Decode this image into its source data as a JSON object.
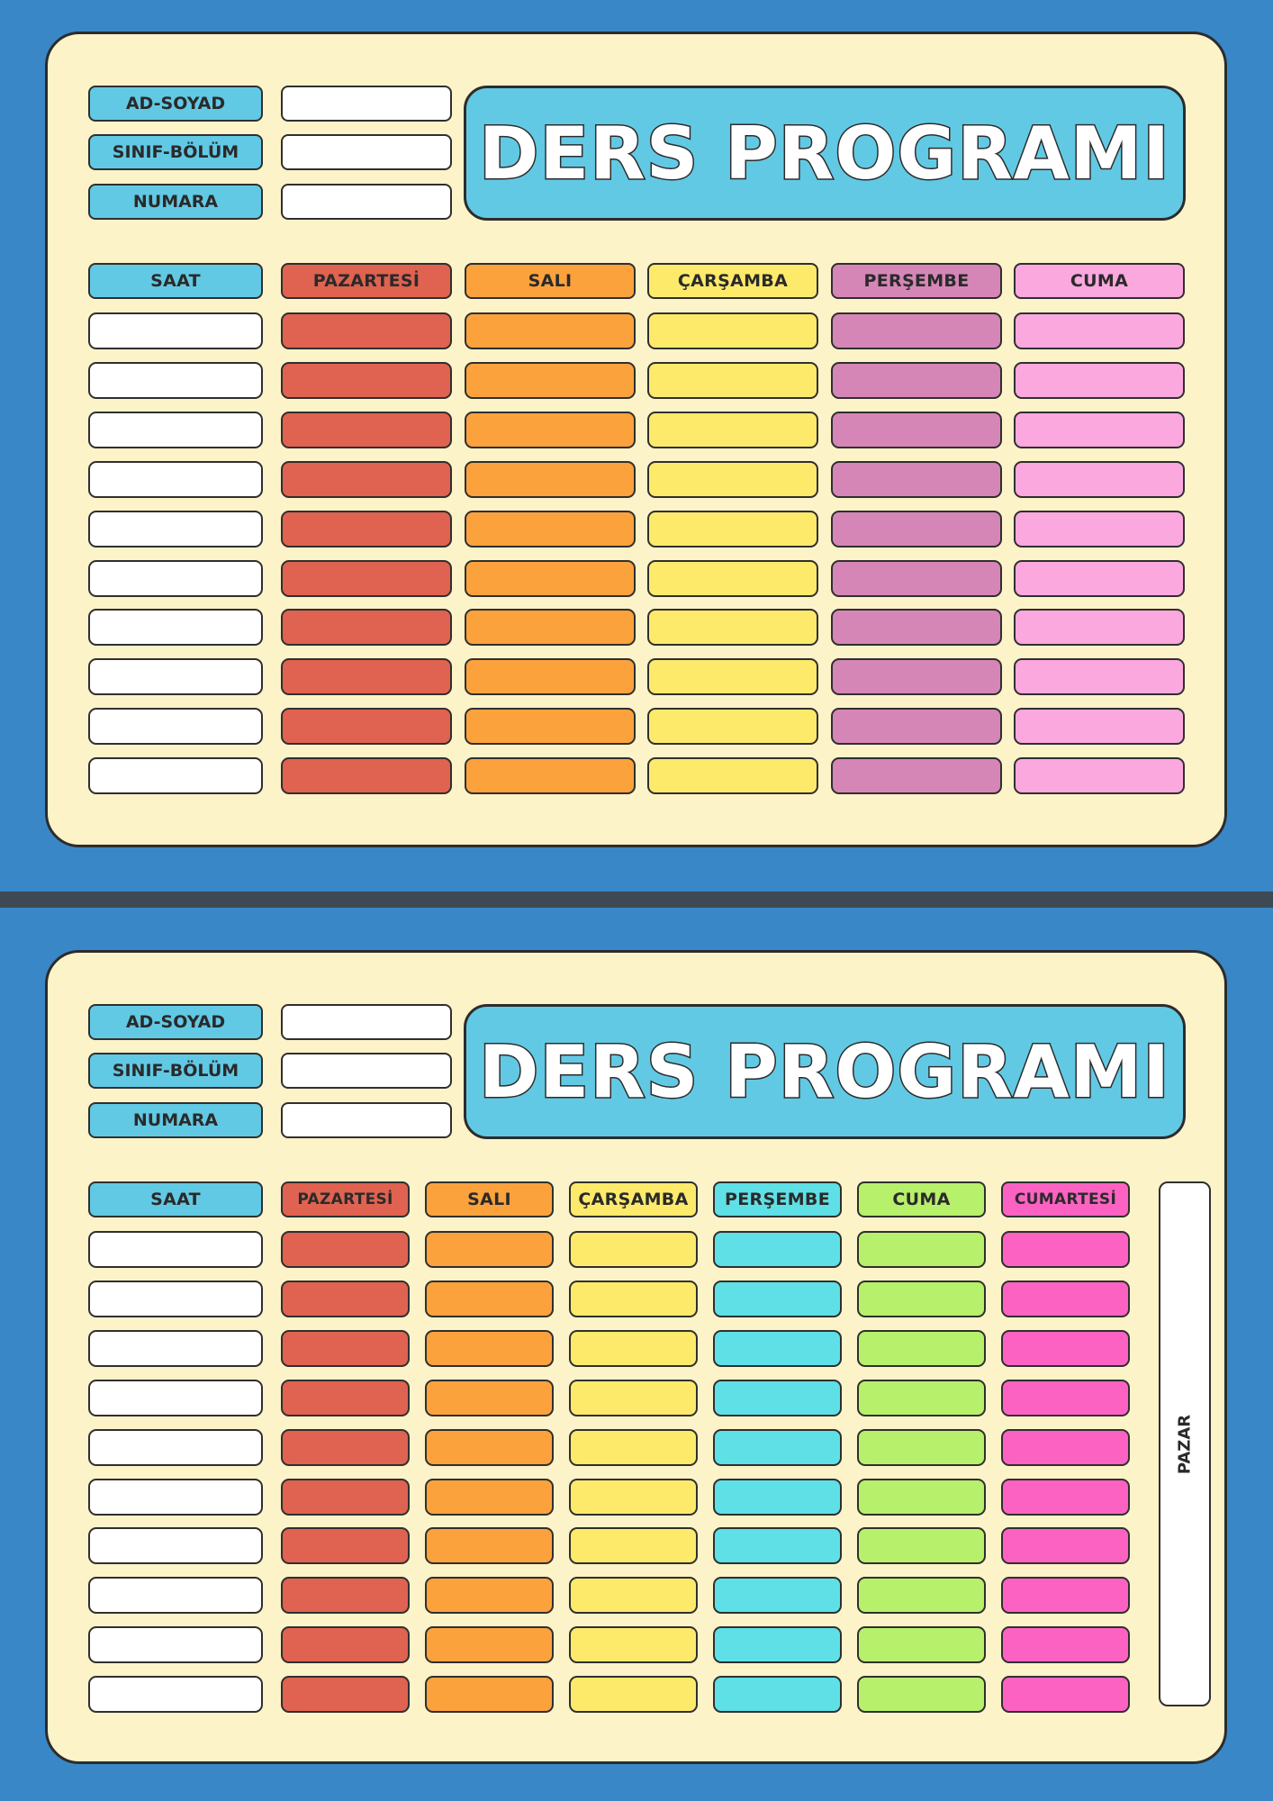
{
  "schedules": [
    {
      "title": "DERS PROGRAMI",
      "info_labels": [
        "AD-SOYAD",
        "SINIF-BÖLÜM",
        "NUMARA"
      ],
      "time_header": "SAAT",
      "rows": 10,
      "days": [
        {
          "name": "PAZARTESİ",
          "color": "#e06250"
        },
        {
          "name": "SALI",
          "color": "#fca23d"
        },
        {
          "name": "ÇARŞAMBA",
          "color": "#fdea6b"
        },
        {
          "name": "PERŞEMBE",
          "color": "#d586b6"
        },
        {
          "name": "CUMA",
          "color": "#fba8df"
        }
      ]
    },
    {
      "title": "DERS PROGRAMI",
      "info_labels": [
        "AD-SOYAD",
        "SINIF-BÖLÜM",
        "NUMARA"
      ],
      "time_header": "SAAT",
      "rows": 10,
      "days": [
        {
          "name": "PAZARTESİ",
          "color": "#e06250"
        },
        {
          "name": "SALI",
          "color": "#fca23d"
        },
        {
          "name": "ÇARŞAMBA",
          "color": "#fdea6b"
        },
        {
          "name": "PERŞEMBE",
          "color": "#5ee0e6"
        },
        {
          "name": "CUMA",
          "color": "#b7f06a"
        },
        {
          "name": "CUMARTESİ",
          "color": "#fc62c2"
        }
      ],
      "side_label": "PAZAR"
    }
  ]
}
